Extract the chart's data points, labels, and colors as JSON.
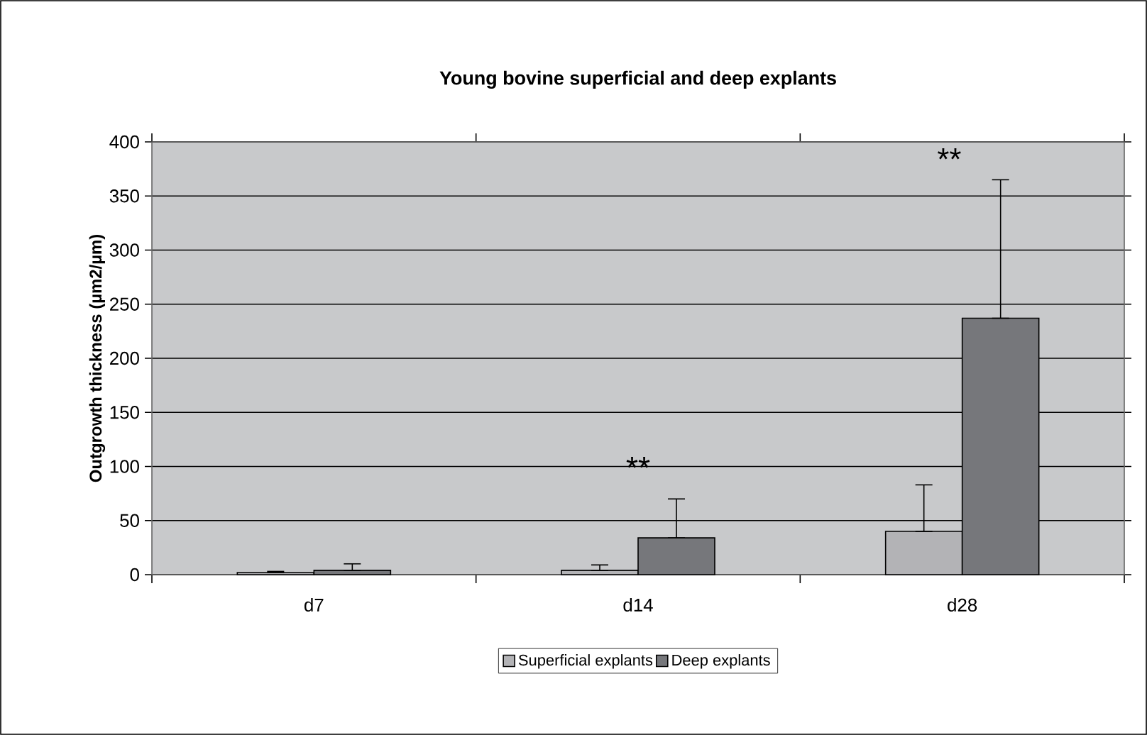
{
  "chart_data": {
    "type": "bar",
    "title": "Young bovine superficial and deep explants",
    "ylabel": "Outgrowth thickness (µm2/µm)",
    "categories": [
      "d7",
      "d14",
      "d28"
    ],
    "series": [
      {
        "name": "Superficial explants",
        "color": "#b3b3b6",
        "values": [
          2,
          4,
          40
        ],
        "errors": [
          [
            2,
            3
          ],
          [
            4,
            9
          ],
          [
            40,
            83
          ]
        ]
      },
      {
        "name": "Deep explants",
        "color": "#76777b",
        "values": [
          4,
          34,
          237
        ],
        "errors": [
          [
            4,
            10
          ],
          [
            34,
            70
          ],
          [
            237,
            365
          ]
        ]
      }
    ],
    "ylim": [
      0,
      400
    ],
    "yticks": [
      0,
      50,
      100,
      150,
      200,
      250,
      300,
      350,
      400
    ],
    "grid": "y",
    "legend": "bottom",
    "annotations": [
      "**",
      "**"
    ]
  }
}
